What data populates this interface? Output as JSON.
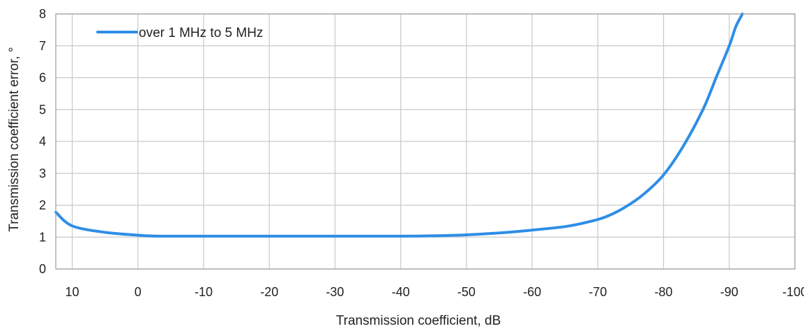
{
  "chart_data": {
    "type": "line",
    "xlabel": "Transmission coefficient, dB",
    "ylabel": "Transmission coefficient error, °",
    "xlim": [
      12.5,
      -100
    ],
    "ylim": [
      0,
      8
    ],
    "x_ticks": [
      10,
      0,
      -10,
      -20,
      -30,
      -40,
      -50,
      -60,
      -70,
      -80,
      -90,
      -100
    ],
    "x_tick_labels": [
      "10",
      "0",
      "-10",
      "-20",
      "-30",
      "-40",
      "-50",
      "-60",
      "-70",
      "-80",
      "-90",
      "-100"
    ],
    "y_ticks": [
      0,
      1,
      2,
      3,
      4,
      5,
      6,
      7,
      8
    ],
    "y_tick_labels": [
      "0",
      "1",
      "2",
      "3",
      "4",
      "5",
      "6",
      "7",
      "8"
    ],
    "grid": true,
    "legend_position": "top-left",
    "series": [
      {
        "name": "over 1 MHz to 5 MHz",
        "color": "#2e8ee6",
        "x": [
          12.5,
          10,
          5,
          0,
          -3,
          -10,
          -20,
          -30,
          -40,
          -45,
          -50,
          -55,
          -60,
          -65,
          -68,
          -71,
          -74,
          -77,
          -80,
          -83,
          -86,
          -88,
          -90,
          -91,
          -92
        ],
        "y": [
          1.78,
          1.35,
          1.15,
          1.06,
          1.03,
          1.03,
          1.03,
          1.03,
          1.03,
          1.04,
          1.07,
          1.13,
          1.22,
          1.33,
          1.45,
          1.62,
          1.92,
          2.35,
          2.95,
          3.85,
          5.0,
          6.0,
          7.0,
          7.6,
          8.0
        ]
      }
    ]
  }
}
